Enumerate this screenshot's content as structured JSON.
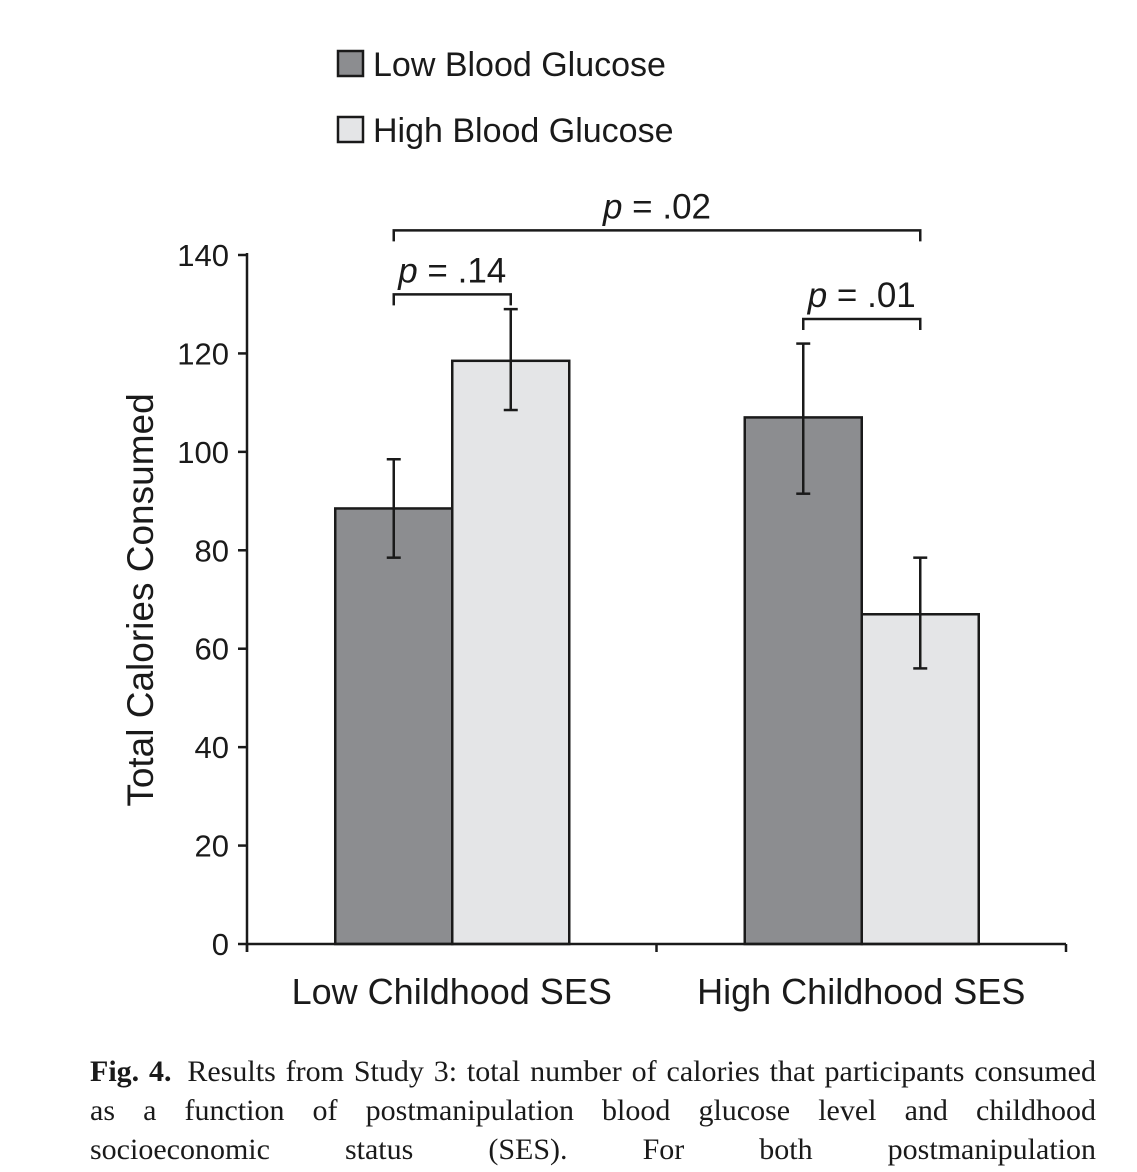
{
  "chart_data": {
    "type": "bar",
    "categories": [
      "Low Childhood SES",
      "High Childhood SES"
    ],
    "series": [
      {
        "name": "Low Blood Glucose",
        "values": [
          88.5,
          107
        ],
        "error_low": [
          78.5,
          91.5
        ],
        "error_high": [
          98.5,
          122
        ],
        "color": "#8c8d90"
      },
      {
        "name": "High Blood Glucose",
        "values": [
          118.5,
          67
        ],
        "error_low": [
          108.5,
          56
        ],
        "error_high": [
          129,
          78.5
        ],
        "color": "#e4e5e7"
      }
    ],
    "ylabel": "Total Calories Consumed",
    "xlabel": "",
    "ylim": [
      0,
      140
    ],
    "yticks": [
      0,
      20,
      40,
      60,
      80,
      100,
      120,
      140
    ],
    "grid": false,
    "legend": "top",
    "annotations": [
      {
        "text": "p = .14",
        "p_italic": "p",
        "rest": " = .14",
        "from": "Low Childhood SES:Low Blood Glucose",
        "to": "Low Childhood SES:High Blood Glucose",
        "level": 132
      },
      {
        "text": "p = .01",
        "p_italic": "p",
        "rest": " = .01",
        "from": "High Childhood SES:Low Blood Glucose",
        "to": "High Childhood SES:High Blood Glucose",
        "level": 127
      },
      {
        "text": "p = .02",
        "p_italic": "p",
        "rest": " = .02",
        "from": "Low Childhood SES:Low Blood Glucose",
        "to": "High Childhood SES:High Blood Glucose",
        "level": 145
      }
    ]
  },
  "caption": {
    "label": "Fig. 4.",
    "text": "Results from Study 3: total number of calories that participants consumed as a function of postmanipulation blood glucose level and childhood socioeconomic status (SES). For both postmanipulation"
  }
}
